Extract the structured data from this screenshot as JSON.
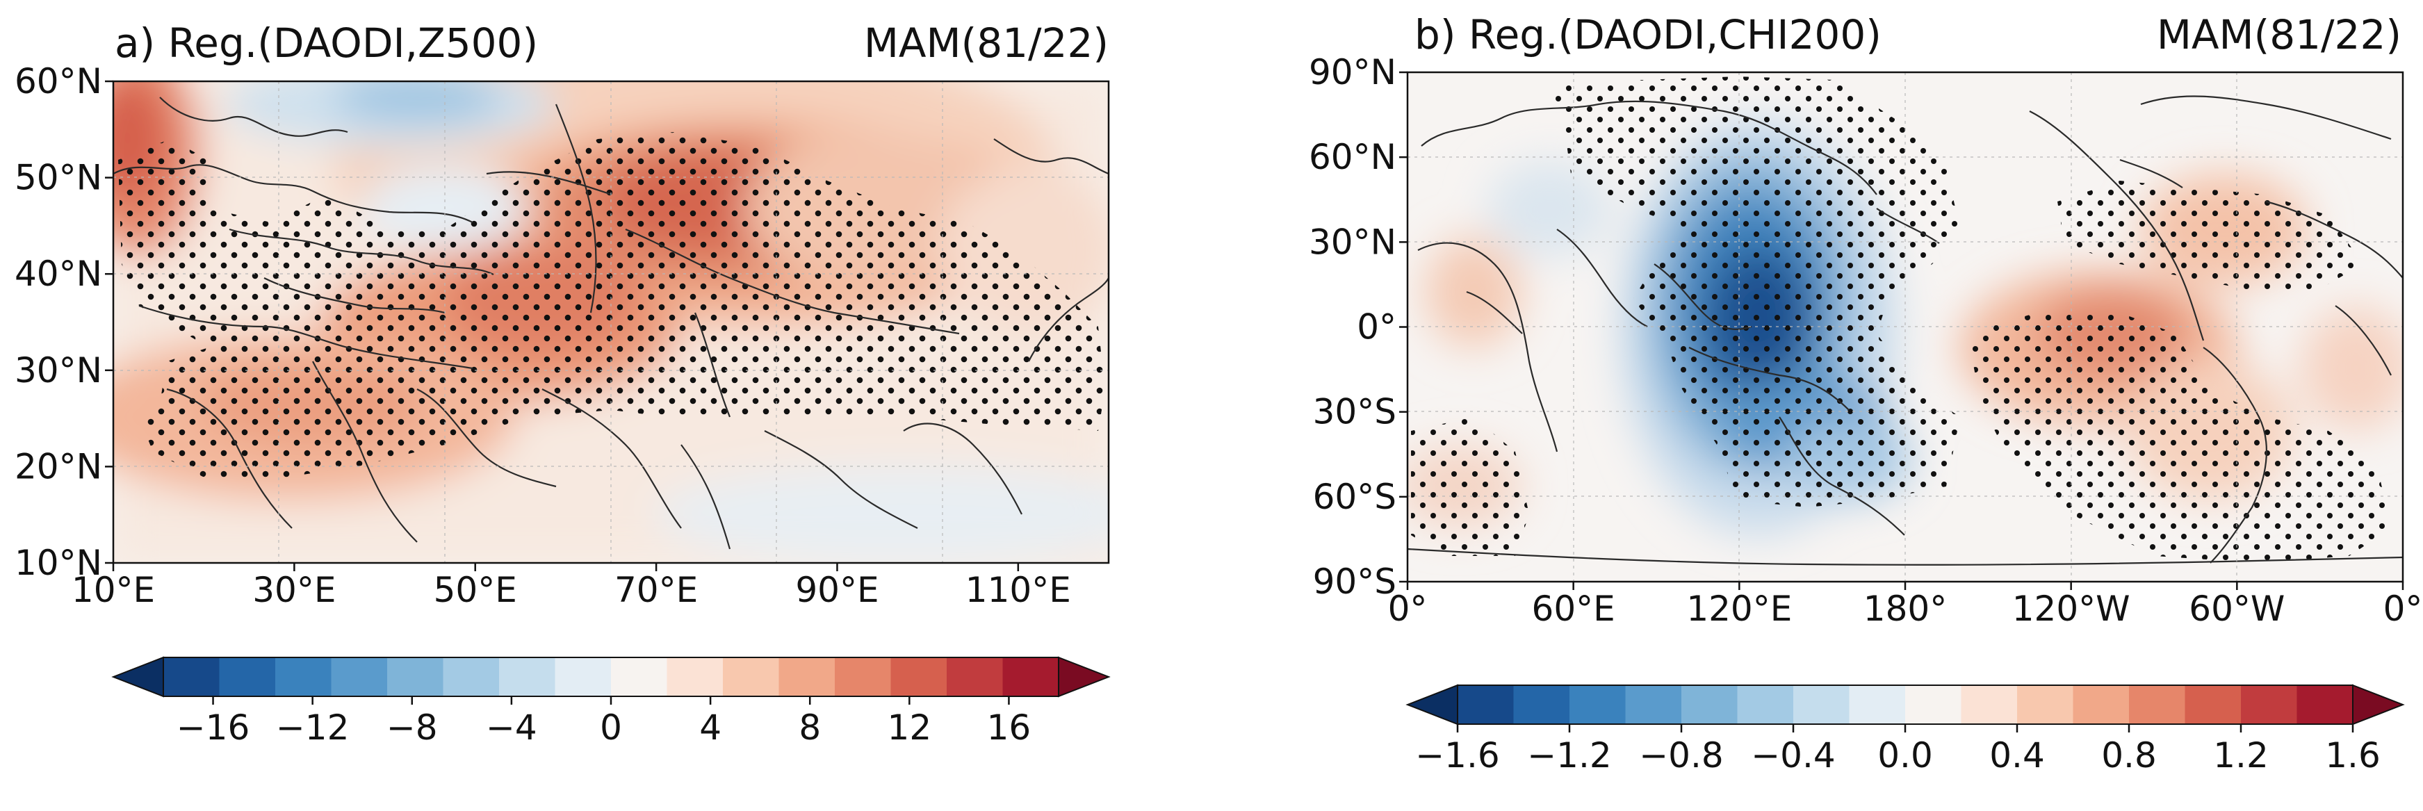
{
  "panels": [
    {
      "title": "a) Reg.(DAODI,Z500)",
      "season": "MAM(81/22)",
      "lat_labels": [
        "60°N",
        "50°N",
        "40°N",
        "30°N",
        "20°N",
        "10°N"
      ],
      "lon_labels": [
        "10°E",
        "30°E",
        "50°E",
        "70°E",
        "90°E",
        "110°E"
      ],
      "colorbar_ticks": [
        "−16",
        "−12",
        "−8",
        "−4",
        "0",
        "4",
        "8",
        "12",
        "16"
      ]
    },
    {
      "title": "b) Reg.(DAODI,CHI200)",
      "season": "MAM(81/22)",
      "lat_labels": [
        "90°N",
        "60°N",
        "30°N",
        "0°",
        "30°S",
        "60°S",
        "90°S"
      ],
      "lon_labels": [
        "0°",
        "60°E",
        "120°E",
        "180°",
        "120°W",
        "60°W",
        "0°"
      ],
      "colorbar_ticks": [
        "−1.6",
        "−1.2",
        "−0.8",
        "−0.4",
        "0.0",
        "0.4",
        "0.8",
        "1.2",
        "1.6"
      ]
    }
  ],
  "colors": {
    "diverging": [
      "#0b2f63",
      "#16498a",
      "#2466a8",
      "#3a82bd",
      "#5a9bcc",
      "#7fb4d8",
      "#a3cae4",
      "#c5dded",
      "#e3edf4",
      "#f7f3f0",
      "#fbe2d5",
      "#f8c8ae",
      "#f1a889",
      "#e6866a",
      "#d6604e",
      "#c13c3e",
      "#a51b2e",
      "#7a0b22"
    ],
    "land_line": "#2a2a2a",
    "stipple": "#111111"
  }
}
